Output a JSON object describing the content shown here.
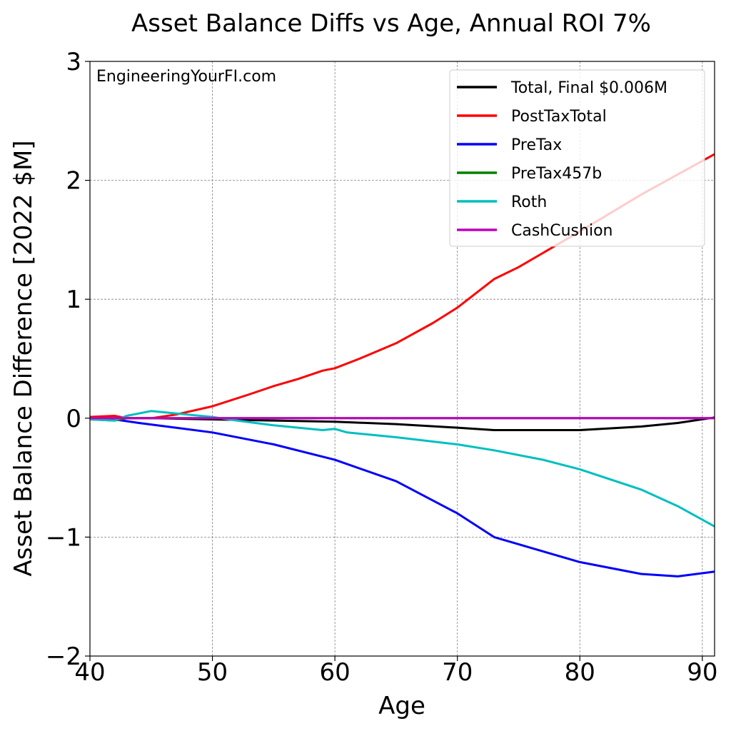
{
  "chart_data": {
    "type": "line",
    "title": "Asset Balance Diffs vs Age, Annual ROI 7%",
    "xlabel": "Age",
    "ylabel": "Asset Balance Difference [2022 $M]",
    "xlim": [
      40,
      91
    ],
    "ylim": [
      -2,
      3
    ],
    "xticks": [
      40,
      50,
      60,
      70,
      80,
      90
    ],
    "yticks": [
      -2,
      -1,
      0,
      1,
      2,
      3
    ],
    "xtick_labels": [
      "40",
      "50",
      "60",
      "70",
      "80",
      "90"
    ],
    "ytick_labels": [
      "−2",
      "−1",
      "0",
      "1",
      "2",
      "3"
    ],
    "grid": true,
    "legend_position": "top-right",
    "annotation": "EngineeringYourFI.com",
    "series": [
      {
        "name": "Total, Final $0.006M",
        "color": "#000000",
        "x": [
          40,
          42,
          45,
          50,
          55,
          60,
          65,
          70,
          73,
          76,
          80,
          85,
          88,
          91
        ],
        "y": [
          0,
          0,
          0,
          -0.01,
          -0.02,
          -0.03,
          -0.05,
          -0.08,
          -0.1,
          -0.1,
          -0.1,
          -0.07,
          -0.04,
          0.006
        ]
      },
      {
        "name": "PostTaxTotal",
        "color": "#ff0000",
        "x": [
          40,
          42,
          43,
          45,
          47,
          50,
          53,
          55,
          57,
          59,
          60,
          62,
          65,
          68,
          70,
          73,
          75,
          80,
          85,
          91
        ],
        "y": [
          0.01,
          0.02,
          0,
          0,
          0.03,
          0.1,
          0.2,
          0.27,
          0.33,
          0.4,
          0.42,
          0.5,
          0.63,
          0.8,
          0.93,
          1.17,
          1.27,
          1.57,
          1.88,
          2.22
        ]
      },
      {
        "name": "PreTax",
        "color": "#0000ff",
        "x": [
          40,
          42,
          44,
          47,
          50,
          55,
          60,
          65,
          70,
          73,
          76,
          80,
          85,
          88,
          91
        ],
        "y": [
          0,
          -0.01,
          -0.04,
          -0.08,
          -0.12,
          -0.22,
          -0.35,
          -0.53,
          -0.8,
          -1.0,
          -1.09,
          -1.21,
          -1.31,
          -1.33,
          -1.29
        ]
      },
      {
        "name": "PreTax457b",
        "color": "#008000",
        "x": [
          40,
          42,
          43,
          46,
          91
        ],
        "y": [
          -0.01,
          -0.02,
          0,
          0,
          0
        ]
      },
      {
        "name": "Roth",
        "color": "#00bfbf",
        "x": [
          40,
          42,
          43,
          45,
          47,
          50,
          52,
          55,
          59,
          60,
          61,
          65,
          70,
          73,
          77,
          80,
          85,
          88,
          91
        ],
        "y": [
          -0.01,
          -0.02,
          0.02,
          0.06,
          0.04,
          0.01,
          -0.02,
          -0.06,
          -0.1,
          -0.09,
          -0.12,
          -0.16,
          -0.22,
          -0.27,
          -0.35,
          -0.43,
          -0.6,
          -0.74,
          -0.91
        ]
      },
      {
        "name": "CashCushion",
        "color": "#bf00bf",
        "x": [
          40,
          91
        ],
        "y": [
          0,
          0
        ]
      }
    ]
  }
}
